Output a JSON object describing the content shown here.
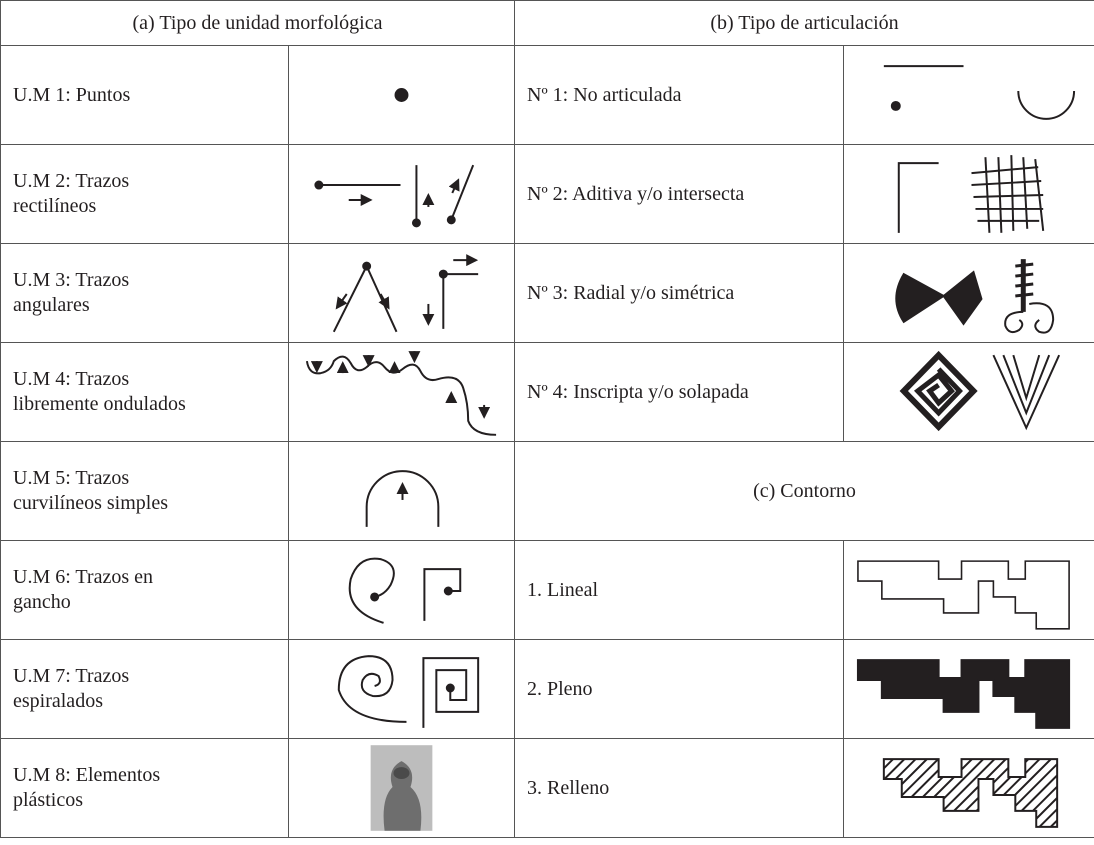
{
  "table": {
    "headers": [
      "(a) Tipo de unidad morfológica",
      "(b) Tipo de articulación"
    ],
    "units": [
      [
        "U.M 1: Puntos"
      ],
      [
        "U.M 2: Trazos",
        "rectilíneos"
      ],
      [
        "U.M 3: Trazos",
        "angulares"
      ],
      [
        "U.M 4: Trazos",
        "libremente ondulados"
      ],
      [
        "U.M 5: Trazos",
        "curvilíneos simples"
      ],
      [
        "U.M 6: Trazos en",
        "gancho"
      ],
      [
        "U.M 7: Trazos",
        "espiralados"
      ],
      [
        "U.M 8: Elementos",
        "plásticos"
      ]
    ],
    "articulations": [
      "Nº 1: No articulada",
      "Nº 2: Aditiva y/o intersecta",
      "Nº 3: Radial y/o simétrica",
      "Nº 4: Inscripta y/o solapada"
    ],
    "contour_header": "(c) Contorno",
    "contours": [
      "1. Lineal",
      "2. Pleno",
      "3. Relleno"
    ]
  }
}
